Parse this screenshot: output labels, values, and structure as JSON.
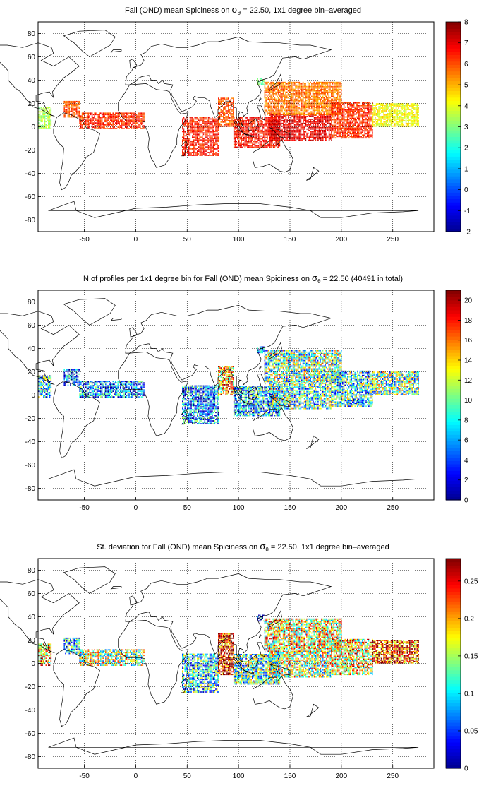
{
  "colormap": [
    "#00008f",
    "#0000ff",
    "#0080ff",
    "#00ffff",
    "#80ff80",
    "#ffff00",
    "#ff8000",
    "#ff0000",
    "#800000"
  ],
  "chart_data": [
    {
      "type": "heatmap",
      "id": "mean",
      "title_parts": {
        "pre": "Fall (OND) mean Spiciness on ",
        "sym": "σ",
        "sub": "θ",
        "post": " = 22.50, 1x1 degree bin–averaged"
      },
      "xlim": [
        -95,
        290
      ],
      "ylim": [
        -90,
        90
      ],
      "xticks": [
        -50,
        0,
        50,
        100,
        150,
        200,
        250
      ],
      "yticks": [
        -80,
        -60,
        -40,
        -20,
        0,
        20,
        40,
        60,
        80
      ],
      "colorbar": {
        "min": -2,
        "max": 8,
        "ticks": [
          -2,
          -1,
          0,
          1,
          2,
          3,
          4,
          5,
          6,
          7,
          8
        ]
      },
      "grid": true,
      "regions": [
        {
          "lon": [
            -95,
            -82
          ],
          "lat": [
            -2,
            16
          ],
          "value": 3.5
        },
        {
          "lon": [
            -70,
            -55
          ],
          "lat": [
            8,
            22
          ],
          "value": 6.0
        },
        {
          "lon": [
            -55,
            8
          ],
          "lat": [
            -2,
            12
          ],
          "value": 6.3
        },
        {
          "lon": [
            45,
            80
          ],
          "lat": [
            -25,
            8
          ],
          "value": 6.5
        },
        {
          "lon": [
            80,
            95
          ],
          "lat": [
            0,
            25
          ],
          "value": 6.0
        },
        {
          "lon": [
            95,
            140
          ],
          "lat": [
            -18,
            8
          ],
          "value": 6.6
        },
        {
          "lon": [
            130,
            190
          ],
          "lat": [
            -12,
            10
          ],
          "value": 7.0
        },
        {
          "lon": [
            125,
            200
          ],
          "lat": [
            10,
            38
          ],
          "value": 5.6
        },
        {
          "lon": [
            190,
            230
          ],
          "lat": [
            -10,
            20
          ],
          "value": 6.3
        },
        {
          "lon": [
            230,
            275
          ],
          "lat": [
            0,
            20
          ],
          "value": 4.2
        },
        {
          "lon": [
            118,
            125
          ],
          "lat": [
            36,
            42
          ],
          "value": 3.0
        }
      ]
    },
    {
      "type": "heatmap",
      "id": "count",
      "title_parts": {
        "pre": "N of profiles per 1x1 degree bin for Fall (OND) mean Spiciness on ",
        "sym": "σ",
        "sub": "θ",
        "post": " = 22.50 (40491 in total)"
      },
      "xlim": [
        -95,
        290
      ],
      "ylim": [
        -90,
        90
      ],
      "xticks": [
        -50,
        0,
        50,
        100,
        150,
        200,
        250
      ],
      "yticks": [
        -80,
        -60,
        -40,
        -20,
        0,
        20,
        40,
        60,
        80
      ],
      "colorbar": {
        "min": 0,
        "max": 21,
        "ticks": [
          0,
          2,
          4,
          6,
          8,
          10,
          12,
          14,
          16,
          18,
          20
        ]
      },
      "grid": true,
      "regions": [
        {
          "lon": [
            -95,
            -82
          ],
          "lat": [
            -2,
            16
          ],
          "value": 7
        },
        {
          "lon": [
            -70,
            -55
          ],
          "lat": [
            8,
            22
          ],
          "value": 4
        },
        {
          "lon": [
            -55,
            8
          ],
          "lat": [
            -2,
            12
          ],
          "value": 5
        },
        {
          "lon": [
            45,
            80
          ],
          "lat": [
            -25,
            8
          ],
          "value": 5
        },
        {
          "lon": [
            80,
            95
          ],
          "lat": [
            0,
            25
          ],
          "value": 15
        },
        {
          "lon": [
            95,
            140
          ],
          "lat": [
            -18,
            8
          ],
          "value": 6
        },
        {
          "lon": [
            130,
            190
          ],
          "lat": [
            -12,
            10
          ],
          "value": 9
        },
        {
          "lon": [
            125,
            200
          ],
          "lat": [
            10,
            38
          ],
          "value": 10
        },
        {
          "lon": [
            190,
            230
          ],
          "lat": [
            -10,
            20
          ],
          "value": 8
        },
        {
          "lon": [
            230,
            275
          ],
          "lat": [
            0,
            20
          ],
          "value": 10
        },
        {
          "lon": [
            118,
            125
          ],
          "lat": [
            36,
            42
          ],
          "value": 4
        }
      ]
    },
    {
      "type": "heatmap",
      "id": "std",
      "title_parts": {
        "pre": "St. deviation for Fall (OND) mean Spiciness on ",
        "sym": "σ",
        "sub": "θ",
        "post": " = 22.50, 1x1 degree bin–averaged"
      },
      "xlim": [
        -95,
        290
      ],
      "ylim": [
        -90,
        90
      ],
      "xticks": [
        -50,
        0,
        50,
        100,
        150,
        200,
        250
      ],
      "yticks": [
        -80,
        -60,
        -40,
        -20,
        0,
        20,
        40,
        60,
        80
      ],
      "colorbar": {
        "min": 0,
        "max": 0.28,
        "ticks": [
          0,
          0.05,
          0.1,
          0.15,
          0.2,
          0.25
        ]
      },
      "grid": true,
      "regions": [
        {
          "lon": [
            -95,
            -82
          ],
          "lat": [
            -2,
            16
          ],
          "value": 0.2
        },
        {
          "lon": [
            -70,
            -55
          ],
          "lat": [
            8,
            22
          ],
          "value": 0.1
        },
        {
          "lon": [
            -55,
            8
          ],
          "lat": [
            -2,
            12
          ],
          "value": 0.15
        },
        {
          "lon": [
            45,
            80
          ],
          "lat": [
            -25,
            8
          ],
          "value": 0.1
        },
        {
          "lon": [
            80,
            95
          ],
          "lat": [
            -10,
            25
          ],
          "value": 0.26
        },
        {
          "lon": [
            95,
            140
          ],
          "lat": [
            -18,
            8
          ],
          "value": 0.12
        },
        {
          "lon": [
            130,
            190
          ],
          "lat": [
            -12,
            10
          ],
          "value": 0.15
        },
        {
          "lon": [
            125,
            200
          ],
          "lat": [
            10,
            38
          ],
          "value": 0.17
        },
        {
          "lon": [
            190,
            230
          ],
          "lat": [
            -10,
            20
          ],
          "value": 0.18
        },
        {
          "lon": [
            230,
            275
          ],
          "lat": [
            0,
            20
          ],
          "value": 0.24
        },
        {
          "lon": [
            118,
            125
          ],
          "lat": [
            36,
            42
          ],
          "value": 0.05
        }
      ]
    }
  ]
}
